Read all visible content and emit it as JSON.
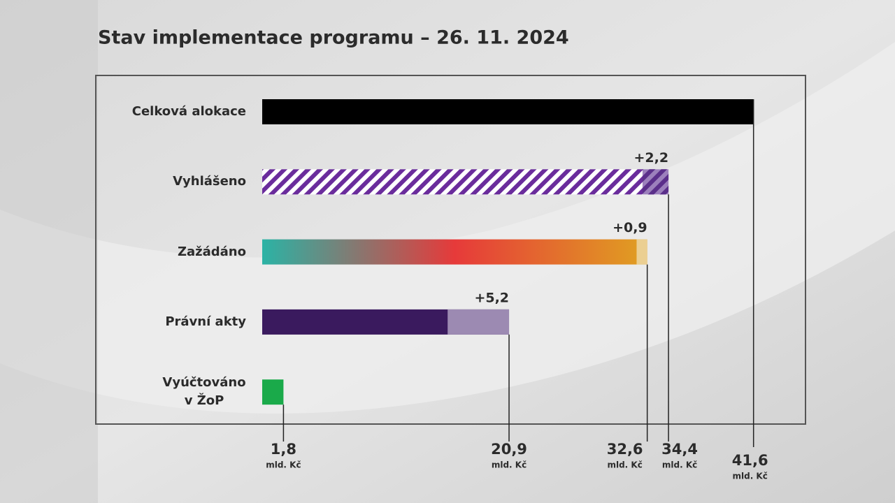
{
  "chart_data": {
    "type": "bar",
    "orientation": "horizontal",
    "title": "Stav implementace programu – 26. 11. 2024",
    "categories": [
      "Celková alokace",
      "Vyhlášeno",
      "Zažádáno",
      "Právní akty",
      "Vyúčtováno v ŽoP"
    ],
    "xlim": [
      0,
      46
    ],
    "unit": "mld. Kč",
    "series": [
      {
        "values": [
          41.6,
          34.4,
          32.6,
          20.9,
          1.8
        ],
        "value_labels": [
          "41,6",
          "34,4",
          "32,6",
          "20,9",
          "1,8"
        ],
        "colors": [
          "#000000",
          "hatch-purple",
          "gradient-warm",
          "#3a1a5e",
          "#1aaa4a"
        ]
      },
      {
        "values": [
          null,
          2.2,
          0.9,
          5.2,
          null
        ],
        "value_labels": [
          null,
          "+2,2",
          "+0,9",
          "+5,2",
          null
        ],
        "colors": [
          null,
          "hatch-dark",
          "#ebcf92",
          "#9c8ab2",
          null
        ]
      }
    ]
  }
}
